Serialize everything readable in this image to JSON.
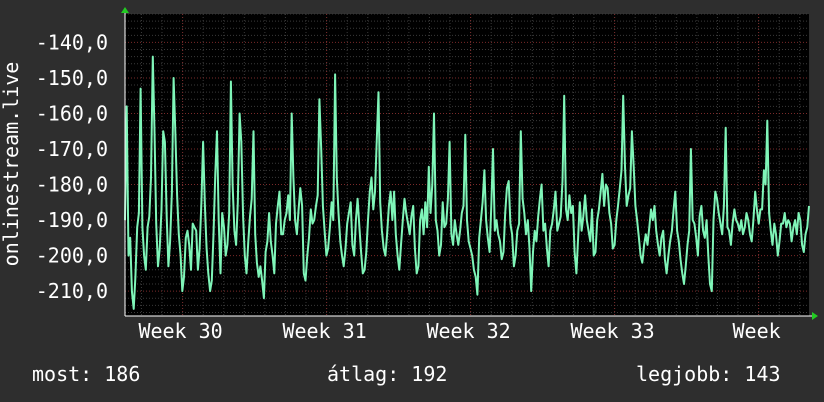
{
  "chart_data": {
    "type": "line",
    "title": "",
    "ylabel": "onlinestream.live",
    "xlabel": "",
    "ylim": [
      -217,
      -132
    ],
    "yticks": [
      -140,
      -150,
      -160,
      -170,
      -180,
      -190,
      -200,
      -210
    ],
    "ytick_labels": [
      "-140,0",
      "-150,0",
      "-160,0",
      "-170,0",
      "-180,0",
      "-190,0",
      "-200,0",
      "-210,0"
    ],
    "xticks": [
      {
        "label": "Week 30",
        "x": 30
      },
      {
        "label": "Week 31",
        "x": 31
      },
      {
        "label": "Week 32",
        "x": 32
      },
      {
        "label": "Week 33",
        "x": 33
      },
      {
        "label": "Week",
        "x": 34
      }
    ],
    "x_range": [
      29.6,
      34.35
    ],
    "grid": true,
    "series": [
      {
        "color": "#7ff5b8",
        "x_start": 29.6,
        "x_end": 34.35,
        "values": [
          -190,
          -158,
          -200,
          -195,
          -210,
          -215,
          -206,
          -192,
          -188,
          -153,
          -192,
          -200,
          -204,
          -192,
          -189,
          -178,
          -144,
          -165,
          -191,
          -203,
          -198,
          -187,
          -165,
          -168,
          -189,
          -203,
          -196,
          -182,
          -150,
          -165,
          -183,
          -194,
          -200,
          -210,
          -206,
          -195,
          -193,
          -197,
          -204,
          -191,
          -192,
          -193,
          -204,
          -198,
          -185,
          -168,
          -186,
          -198,
          -205,
          -210,
          -207,
          -194,
          -177,
          -165,
          -190,
          -205,
          -188,
          -192,
          -200,
          -197,
          -188,
          -151,
          -180,
          -193,
          -197,
          -185,
          -160,
          -168,
          -189,
          -200,
          -205,
          -196,
          -189,
          -184,
          -165,
          -194,
          -202,
          -206,
          -203,
          -207,
          -212,
          -199,
          -196,
          -188,
          -196,
          -200,
          -205,
          -191,
          -186,
          -182,
          -194,
          -194,
          -190,
          -188,
          -183,
          -190,
          -160,
          -178,
          -190,
          -194,
          -187,
          -181,
          -186,
          -205,
          -207,
          -200,
          -195,
          -187,
          -191,
          -190,
          -186,
          -183,
          -156,
          -170,
          -186,
          -193,
          -200,
          -198,
          -192,
          -185,
          -190,
          -149,
          -178,
          -188,
          -196,
          -200,
          -203,
          -198,
          -191,
          -188,
          -185,
          -197,
          -200,
          -190,
          -184,
          -192,
          -199,
          -205,
          -204,
          -199,
          -190,
          -182,
          -178,
          -187,
          -182,
          -168,
          -154,
          -185,
          -193,
          -198,
          -200,
          -194,
          -186,
          -182,
          -190,
          -182,
          -194,
          -200,
          -204,
          -197,
          -190,
          -184,
          -188,
          -191,
          -194,
          -189,
          -186,
          -198,
          -205,
          -203,
          -190,
          -187,
          -194,
          -185,
          -192,
          -175,
          -188,
          -180,
          -160,
          -190,
          -193,
          -200,
          -197,
          -185,
          -192,
          -191,
          -184,
          -168,
          -194,
          -197,
          -190,
          -194,
          -197,
          -193,
          -188,
          -186,
          -166,
          -190,
          -196,
          -198,
          -200,
          -204,
          -206,
          -211,
          -195,
          -190,
          -185,
          -176,
          -190,
          -195,
          -199,
          -186,
          -170,
          -193,
          -190,
          -194,
          -196,
          -201,
          -199,
          -188,
          -181,
          -179,
          -191,
          -194,
          -203,
          -200,
          -193,
          -191,
          -165,
          -184,
          -188,
          -194,
          -190,
          -198,
          -210,
          -199,
          -193,
          -196,
          -189,
          -184,
          -180,
          -193,
          -191,
          -198,
          -203,
          -193,
          -191,
          -187,
          -182,
          -193,
          -191,
          -189,
          -179,
          -155,
          -187,
          -190,
          -183,
          -188,
          -186,
          -199,
          -205,
          -195,
          -185,
          -193,
          -189,
          -183,
          -190,
          -193,
          -196,
          -187,
          -200,
          -199,
          -190,
          -187,
          -182,
          -177,
          -186,
          -180,
          -181,
          -188,
          -191,
          -198,
          -197,
          -190,
          -186,
          -181,
          -176,
          -155,
          -175,
          -186,
          -183,
          -181,
          -165,
          -175,
          -186,
          -190,
          -195,
          -200,
          -202,
          -197,
          -194,
          -197,
          -192,
          -187,
          -190,
          -186,
          -193,
          -197,
          -200,
          -195,
          -193,
          -201,
          -205,
          -200,
          -196,
          -193,
          -187,
          -182,
          -193,
          -196,
          -201,
          -205,
          -208,
          -203,
          -197,
          -193,
          -170,
          -190,
          -191,
          -195,
          -200,
          -189,
          -186,
          -193,
          -195,
          -190,
          -200,
          -208,
          -210,
          -190,
          -182,
          -184,
          -188,
          -191,
          -194,
          -186,
          -164,
          -192,
          -193,
          -197,
          -191,
          -187,
          -190,
          -191,
          -193,
          -190,
          -194,
          -192,
          -188,
          -190,
          -194,
          -196,
          -190,
          -182,
          -187,
          -191,
          -187,
          -187,
          -176,
          -180,
          -162,
          -188,
          -193,
          -197,
          -191,
          -194,
          -200,
          -196,
          -191,
          -191,
          -188,
          -192,
          -190,
          -191,
          -196,
          -192,
          -190,
          -194,
          -188,
          -190,
          -197,
          -199,
          -194,
          -192,
          -186
        ]
      }
    ]
  },
  "stats": {
    "now": "most: 186",
    "avg": "átlag: 192",
    "best": "legjobb: 143"
  }
}
